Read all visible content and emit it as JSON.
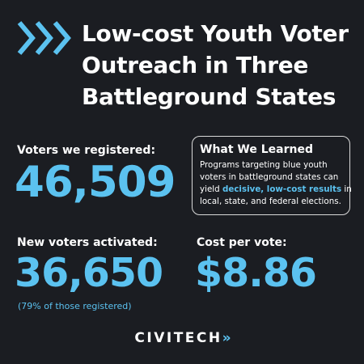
{
  "header": {
    "title_lines": [
      "Low-cost Youth Voter",
      "Outreach in Three",
      "Battleground States"
    ]
  },
  "stats": {
    "registered": {
      "label": "Voters we registered:",
      "value": "46,509"
    },
    "activated": {
      "label": "New voters activated:",
      "value": "36,650",
      "note": "(79% of those registered)"
    },
    "cost": {
      "label": "Cost per vote:",
      "value": "$8.86"
    }
  },
  "learned": {
    "title": "What We Learned",
    "line1": "Programs targeting blue youth",
    "line2": "voters in battleground states can",
    "line3_before": "yield ",
    "line3_highlight": "decisive, low-cost results",
    "line3_after": " in",
    "line4": "local, state, and federal elections."
  },
  "brand": {
    "name": "CIVITECH",
    "mark": "»",
    "accent_color": "#5bc2f0",
    "background_color": "#1b1d22"
  },
  "icons": {
    "header": "double-chevron-right-icon"
  }
}
